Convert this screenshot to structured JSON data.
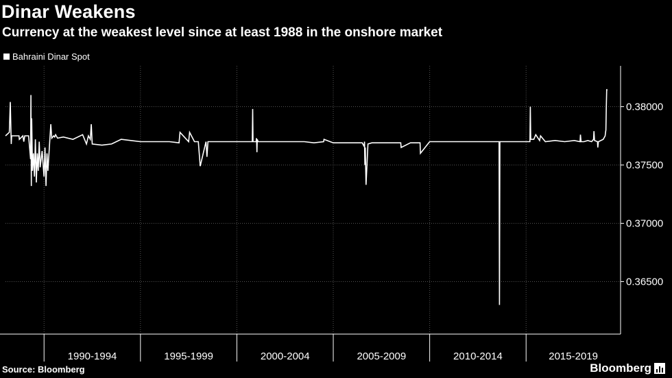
{
  "header": {
    "title": "Dinar Weakens",
    "subtitle": "Currency at the weakest level since at least 1988 in the onshore market"
  },
  "footer": {
    "source": "Source: Bloomberg",
    "brand": "Bloomberg",
    "brand_icon": "bloomberg-logo-icon"
  },
  "colors": {
    "background": "#000000",
    "line": "#ffffff",
    "grid": "#555555"
  },
  "chart_data": {
    "type": "line",
    "title": "Dinar Weakens",
    "subtitle": "Currency at the weakest level since at least 1988 in the onshore market",
    "legend": "top-left",
    "grid": true,
    "y_axis_side": "right",
    "ylim": [
      0.3605,
      0.3835
    ],
    "y_ticks": [
      0.365,
      0.37,
      0.375,
      0.38
    ],
    "y_tick_labels": [
      "0.36500",
      "0.37000",
      "0.37500",
      "0.38000"
    ],
    "xlim": [
      1988.0,
      2019.9
    ],
    "x_period_labels": [
      {
        "label": "1990-1994",
        "start": 1990,
        "end": 1995
      },
      {
        "label": "1995-1999",
        "start": 1995,
        "end": 2000
      },
      {
        "label": "2000-2004",
        "start": 2000,
        "end": 2005
      },
      {
        "label": "2005-2009",
        "start": 2005,
        "end": 2010
      },
      {
        "label": "2010-2014",
        "start": 2010,
        "end": 2015
      },
      {
        "label": "2015-2019",
        "start": 2015,
        "end": 2020
      }
    ],
    "x_gridlines": [
      1990,
      1995,
      2000,
      2005,
      2010,
      2015
    ],
    "series": [
      {
        "name": "Bahraini Dinar Spot",
        "x": [
          1988.0,
          1988.2,
          1988.25,
          1988.3,
          1988.32,
          1988.4,
          1988.7,
          1988.72,
          1988.9,
          1988.95,
          1989.0,
          1989.2,
          1989.3,
          1989.32,
          1989.34,
          1989.36,
          1989.4,
          1989.45,
          1989.5,
          1989.55,
          1989.6,
          1989.65,
          1989.7,
          1989.75,
          1989.8,
          1989.9,
          1990.0,
          1990.05,
          1990.1,
          1990.15,
          1990.2,
          1990.3,
          1990.35,
          1990.4,
          1990.5,
          1990.55,
          1990.6,
          1990.7,
          1991.0,
          1991.5,
          1992.0,
          1992.2,
          1992.3,
          1992.4,
          1992.45,
          1992.5,
          1993.0,
          1993.5,
          1994.0,
          1994.5,
          1995.0,
          1996.0,
          1996.5,
          1997.0,
          1997.05,
          1997.5,
          1997.55,
          1997.8,
          1998.0,
          1998.1,
          1998.4,
          1998.45,
          1998.5,
          1999.0,
          2000.0,
          2000.8,
          2000.82,
          2000.84,
          2001.0,
          2001.02,
          2001.04,
          2001.06,
          2001.1,
          2002.0,
          2003.0,
          2003.5,
          2004.0,
          2004.5,
          2004.52,
          2005.0,
          2006.0,
          2006.5,
          2006.6,
          2006.62,
          2006.64,
          2006.66,
          2006.7,
          2006.8,
          2007.0,
          2007.2,
          2008.0,
          2008.5,
          2008.52,
          2009.0,
          2009.5,
          2009.52,
          2010.0,
          2011.0,
          2012.0,
          2013.0,
          2013.6,
          2013.62,
          2013.64,
          2014.0,
          2015.0,
          2015.2,
          2015.22,
          2015.24,
          2015.4,
          2015.5,
          2015.7,
          2015.75,
          2016.0,
          2016.5,
          2017.0,
          2017.5,
          2017.8,
          2017.82,
          2017.85,
          2018.0,
          2018.2,
          2018.4,
          2018.5,
          2018.52,
          2018.55,
          2018.7,
          2018.72,
          2018.75,
          2019.0,
          2019.1,
          2019.12,
          2019.14,
          2019.16,
          2019.18,
          2019.2
        ],
        "values": [
          0.3775,
          0.3778,
          0.3804,
          0.3768,
          0.3775,
          0.3775,
          0.3775,
          0.3772,
          0.3775,
          0.377,
          0.3775,
          0.3775,
          0.3755,
          0.381,
          0.3732,
          0.379,
          0.3745,
          0.376,
          0.374,
          0.3772,
          0.3735,
          0.376,
          0.3745,
          0.377,
          0.3748,
          0.3762,
          0.374,
          0.3765,
          0.3732,
          0.376,
          0.3745,
          0.3772,
          0.3785,
          0.3773,
          0.3775,
          0.3774,
          0.3776,
          0.3773,
          0.3774,
          0.3772,
          0.3776,
          0.3768,
          0.3775,
          0.3772,
          0.3785,
          0.3768,
          0.3767,
          0.3768,
          0.3772,
          0.3771,
          0.377,
          0.377,
          0.377,
          0.3769,
          0.3778,
          0.377,
          0.3778,
          0.377,
          0.377,
          0.3749,
          0.377,
          0.3757,
          0.377,
          0.377,
          0.377,
          0.377,
          0.3798,
          0.377,
          0.377,
          0.3773,
          0.3761,
          0.3772,
          0.377,
          0.377,
          0.377,
          0.377,
          0.3769,
          0.377,
          0.3772,
          0.3769,
          0.3769,
          0.3769,
          0.3766,
          0.377,
          0.375,
          0.3765,
          0.3733,
          0.3768,
          0.3769,
          0.3769,
          0.3769,
          0.3769,
          0.3765,
          0.3769,
          0.3769,
          0.376,
          0.377,
          0.377,
          0.377,
          0.377,
          0.377,
          0.363,
          0.377,
          0.377,
          0.377,
          0.377,
          0.38,
          0.3772,
          0.3772,
          0.3776,
          0.3771,
          0.3775,
          0.377,
          0.3771,
          0.377,
          0.3771,
          0.377,
          0.3776,
          0.377,
          0.377,
          0.3771,
          0.377,
          0.3772,
          0.3779,
          0.3771,
          0.377,
          0.3765,
          0.377,
          0.3772,
          0.3775,
          0.3778,
          0.378,
          0.38,
          0.3815,
          0.3814
        ]
      }
    ]
  }
}
